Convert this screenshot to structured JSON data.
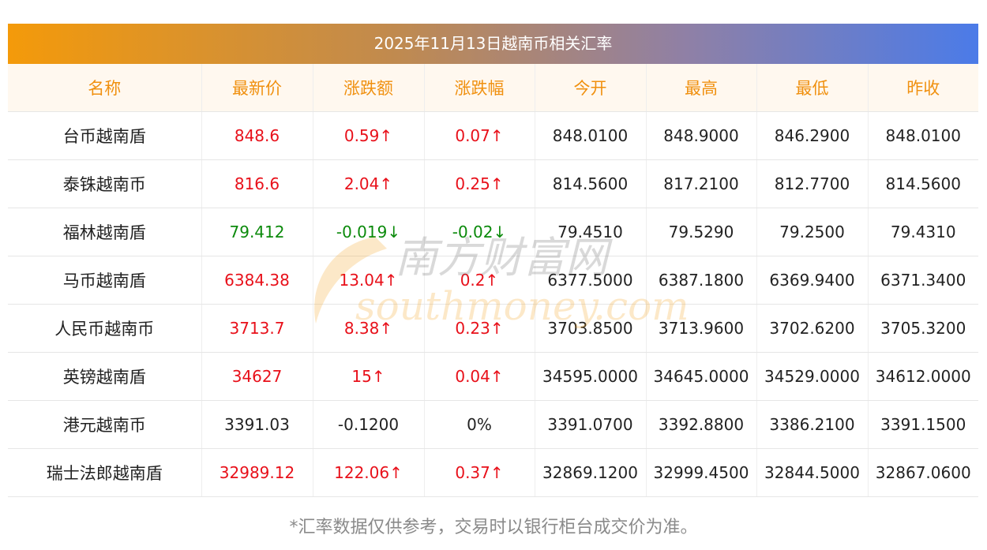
{
  "title": "2025年11月13日越南币相关汇率",
  "headers": [
    "名称",
    "最新价",
    "涨跌额",
    "涨跌幅",
    "今开",
    "最高",
    "最低",
    "昨收"
  ],
  "rows": [
    {
      "name": "台币越南盾",
      "latest": "848.6",
      "change": "0.59↑",
      "change_pct": "0.07↑",
      "open": "848.0100",
      "high": "848.9000",
      "low": "846.2900",
      "prev_close": "848.0100",
      "trend": "up"
    },
    {
      "name": "泰铢越南币",
      "latest": "816.6",
      "change": "2.04↑",
      "change_pct": "0.25↑",
      "open": "814.5600",
      "high": "817.2100",
      "low": "812.7700",
      "prev_close": "814.5600",
      "trend": "up"
    },
    {
      "name": "福林越南盾",
      "latest": "79.412",
      "change": "-0.019↓",
      "change_pct": "-0.02↓",
      "open": "79.4510",
      "high": "79.5290",
      "low": "79.2500",
      "prev_close": "79.4310",
      "trend": "down"
    },
    {
      "name": "马币越南盾",
      "latest": "6384.38",
      "change": "13.04↑",
      "change_pct": "0.2↑",
      "open": "6377.5000",
      "high": "6387.1800",
      "low": "6369.9400",
      "prev_close": "6371.3400",
      "trend": "up"
    },
    {
      "name": "人民币越南币",
      "latest": "3713.7",
      "change": "8.38↑",
      "change_pct": "0.23↑",
      "open": "3703.8500",
      "high": "3713.9600",
      "low": "3702.6200",
      "prev_close": "3705.3200",
      "trend": "up"
    },
    {
      "name": "英镑越南盾",
      "latest": "34627",
      "change": "15↑",
      "change_pct": "0.04↑",
      "open": "34595.0000",
      "high": "34645.0000",
      "low": "34529.0000",
      "prev_close": "34612.0000",
      "trend": "up"
    },
    {
      "name": "港元越南币",
      "latest": "3391.03",
      "change": "-0.1200",
      "change_pct": "0%",
      "open": "3391.0700",
      "high": "3392.8800",
      "low": "3386.2100",
      "prev_close": "3391.1500",
      "trend": "flat"
    },
    {
      "name": "瑞士法郎越南盾",
      "latest": "32989.12",
      "change": "122.06↑",
      "change_pct": "0.37↑",
      "open": "32869.1200",
      "high": "32999.4500",
      "low": "32844.5000",
      "prev_close": "32867.0600",
      "trend": "up"
    }
  ],
  "footnote": "*汇率数据仅供参考，交易时以银行柜台成交价为准。",
  "watermark": {
    "cn": "南方财富网",
    "en": "southmoney.com"
  },
  "colors": {
    "up": "#e8101a",
    "down": "#0b8a0b",
    "header_text": "#f0900f",
    "title_gradient_start": "#f49a0a",
    "title_gradient_end": "#4b7be8"
  }
}
